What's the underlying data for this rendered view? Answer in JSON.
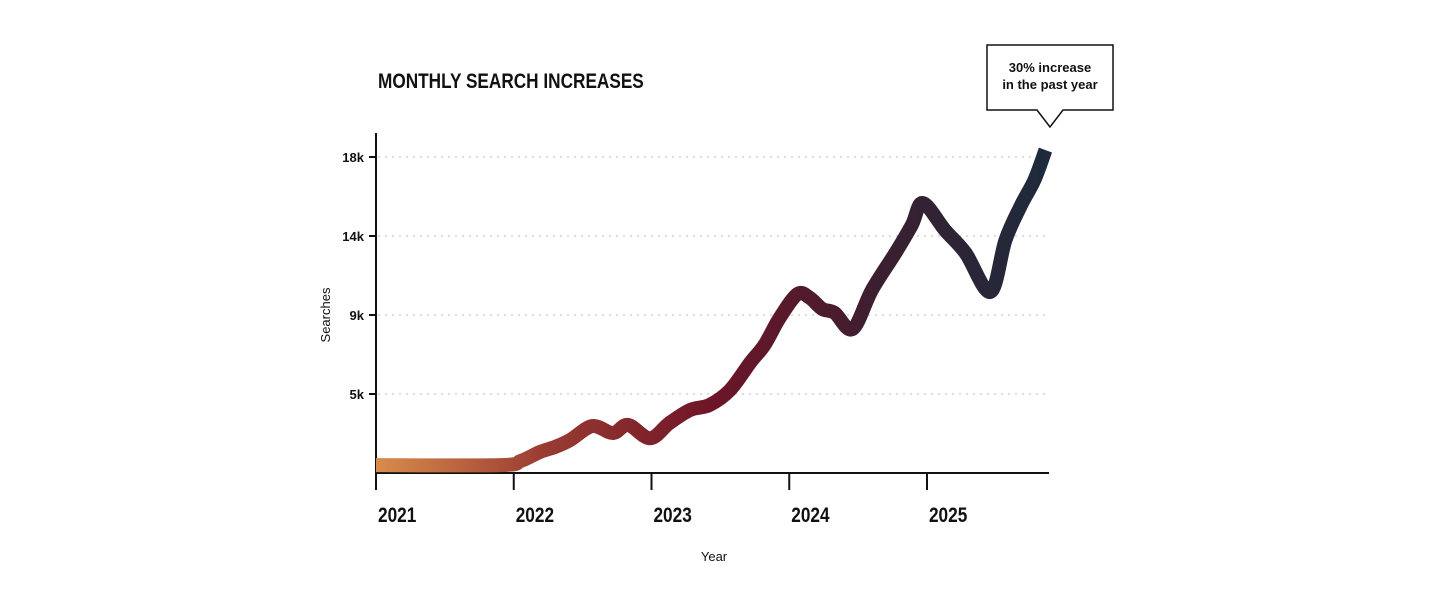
{
  "chart_data": {
    "type": "line",
    "title": "MONTHLY SEARCH INCREASES",
    "xlabel": "Year",
    "ylabel": "Searches",
    "x_ticks": [
      2021,
      2022,
      2023,
      2024,
      2025
    ],
    "x_tick_labels": [
      "2021",
      "2022",
      "2023",
      "2024",
      "2025"
    ],
    "xlim": [
      2021,
      2025.87
    ],
    "y_ticks": [
      5000,
      9000,
      14000,
      18000
    ],
    "y_tick_labels": [
      "5k",
      "9k",
      "14k",
      "18k"
    ],
    "ylim": [
      0,
      18000
    ],
    "grid": "horizontal dotted",
    "annotation": {
      "line1": "30% increase",
      "line2": "in the past year"
    },
    "gradient_colors": [
      "#d88c4c",
      "#9a3b32",
      "#6e1528",
      "#3b1f30",
      "#1d2b3c"
    ],
    "series": [
      {
        "x": [
          2021.0,
          2021.9,
          2022.05,
          2022.19,
          2022.3,
          2022.41,
          2022.57,
          2022.72,
          2022.83,
          2022.99,
          2023.13,
          2023.28,
          2023.42,
          2023.57,
          2023.72,
          2023.82,
          2023.93,
          2024.06,
          2024.15,
          2024.24,
          2024.33,
          2024.46,
          2024.6,
          2024.77,
          2024.89,
          2024.97,
          2025.13,
          2025.28,
          2025.46,
          2025.57,
          2025.68,
          2025.78,
          2025.86
        ],
        "y": [
          500,
          500,
          760,
          1330,
          1650,
          2090,
          2970,
          2530,
          3040,
          2200,
          3160,
          3990,
          4300,
          5200,
          6620,
          7480,
          8850,
          10330,
          10080,
          9380,
          9130,
          8290,
          10580,
          12920,
          14560,
          15670,
          14300,
          12920,
          10460,
          13750,
          15520,
          16840,
          18350
        ]
      }
    ]
  }
}
